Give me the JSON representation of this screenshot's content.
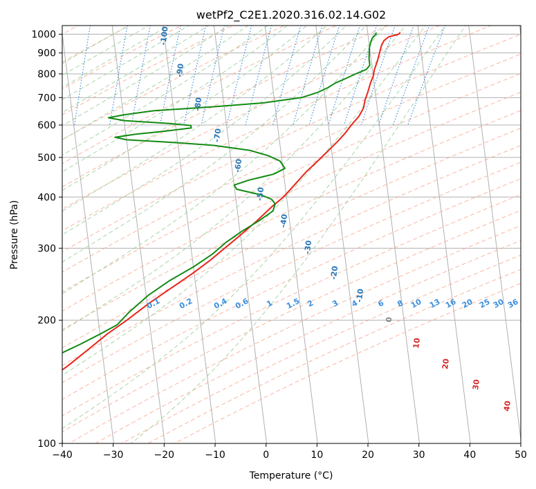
{
  "chart_data": {
    "type": "line",
    "subtype": "skew-t log-p diagram",
    "title": "wetPf2_C2E1.2020.316.02.14.G02",
    "xlabel": "Temperature (°C)",
    "ylabel": "Pressure (hPa)",
    "xlim": [
      -40,
      50
    ],
    "ylim": [
      1050,
      100
    ],
    "y_scale": "log (inverted)",
    "grid": true,
    "x_ticks": [
      "−40",
      "−30",
      "−20",
      "−10",
      "0",
      "10",
      "20",
      "30",
      "40",
      "50"
    ],
    "x_tick_values": [
      -40,
      -30,
      -20,
      -10,
      0,
      10,
      20,
      30,
      40,
      50
    ],
    "y_ticks": [
      "100",
      "200",
      "300",
      "400",
      "500",
      "600",
      "700",
      "800",
      "900",
      "1000"
    ],
    "y_tick_values": [
      100,
      200,
      300,
      400,
      500,
      600,
      700,
      800,
      900,
      1000
    ],
    "series": [
      {
        "color": "#e8231a",
        "role": "temperature",
        "points": [
          {
            "p": 1010,
            "t": 26.4
          },
          {
            "p": 1000,
            "t": 26.0
          },
          {
            "p": 985,
            "t": 24.0
          },
          {
            "p": 965,
            "t": 23.0
          },
          {
            "p": 940,
            "t": 22.4
          },
          {
            "p": 900,
            "t": 21.8
          },
          {
            "p": 860,
            "t": 21.2
          },
          {
            "p": 820,
            "t": 20.4
          },
          {
            "p": 790,
            "t": 20.0
          },
          {
            "p": 760,
            "t": 19.3
          },
          {
            "p": 720,
            "t": 18.5
          },
          {
            "p": 690,
            "t": 17.8
          },
          {
            "p": 660,
            "t": 17.3
          },
          {
            "p": 630,
            "t": 16.2
          },
          {
            "p": 600,
            "t": 14.5
          },
          {
            "p": 575,
            "t": 13.2
          },
          {
            "p": 550,
            "t": 11.6
          },
          {
            "p": 520,
            "t": 9.4
          },
          {
            "p": 490,
            "t": 7.0
          },
          {
            "p": 460,
            "t": 4.4
          },
          {
            "p": 430,
            "t": 2.0
          },
          {
            "p": 400,
            "t": -0.6
          },
          {
            "p": 380,
            "t": -3.0
          },
          {
            "p": 350,
            "t": -6.4
          },
          {
            "p": 320,
            "t": -10.4
          },
          {
            "p": 300,
            "t": -13.4
          },
          {
            "p": 280,
            "t": -16.6
          },
          {
            "p": 260,
            "t": -20.4
          },
          {
            "p": 240,
            "t": -24.8
          },
          {
            "p": 220,
            "t": -29.6
          },
          {
            "p": 200,
            "t": -34.4
          },
          {
            "p": 185,
            "t": -38.6
          },
          {
            "p": 170,
            "t": -42.6
          },
          {
            "p": 155,
            "t": -47.0
          },
          {
            "p": 140,
            "t": -52.4
          },
          {
            "p": 128,
            "t": -57.6
          },
          {
            "p": 118,
            "t": -62.6
          },
          {
            "p": 110,
            "t": -66.8
          },
          {
            "p": 105,
            "t": -69.6
          },
          {
            "p": 100,
            "t": -72.4
          }
        ]
      },
      {
        "color": "#118a11",
        "role": "dewpoint",
        "points": [
          {
            "p": 1010,
            "t": 21.6
          },
          {
            "p": 1000,
            "t": 21.6
          },
          {
            "p": 980,
            "t": 20.8
          },
          {
            "p": 960,
            "t": 20.4
          },
          {
            "p": 930,
            "t": 20.0
          },
          {
            "p": 900,
            "t": 19.8
          },
          {
            "p": 870,
            "t": 19.6
          },
          {
            "p": 840,
            "t": 19.6
          },
          {
            "p": 820,
            "t": 18.8
          },
          {
            "p": 800,
            "t": 16.6
          },
          {
            "p": 780,
            "t": 14.6
          },
          {
            "p": 760,
            "t": 12.4
          },
          {
            "p": 740,
            "t": 10.8
          },
          {
            "p": 720,
            "t": 8.6
          },
          {
            "p": 700,
            "t": 5.4
          },
          {
            "p": 680,
            "t": -2.0
          },
          {
            "p": 665,
            "t": -12.0
          },
          {
            "p": 650,
            "t": -24.0
          },
          {
            "p": 635,
            "t": -30.0
          },
          {
            "p": 625,
            "t": -33.0
          },
          {
            "p": 615,
            "t": -30.0
          },
          {
            "p": 605,
            "t": -21.0
          },
          {
            "p": 598,
            "t": -17.0
          },
          {
            "p": 590,
            "t": -17.0
          },
          {
            "p": 580,
            "t": -22.0
          },
          {
            "p": 570,
            "t": -28.0
          },
          {
            "p": 560,
            "t": -32.2
          },
          {
            "p": 552,
            "t": -30.0
          },
          {
            "p": 545,
            "t": -22.0
          },
          {
            "p": 535,
            "t": -13.0
          },
          {
            "p": 520,
            "t": -6.0
          },
          {
            "p": 505,
            "t": -2.6
          },
          {
            "p": 490,
            "t": -0.4
          },
          {
            "p": 470,
            "t": 0.4
          },
          {
            "p": 455,
            "t": -2.0
          },
          {
            "p": 440,
            "t": -7.0
          },
          {
            "p": 428,
            "t": -10.0
          },
          {
            "p": 418,
            "t": -9.6
          },
          {
            "p": 405,
            "t": -5.0
          },
          {
            "p": 395,
            "t": -3.0
          },
          {
            "p": 385,
            "t": -2.4
          },
          {
            "p": 370,
            "t": -3.0
          },
          {
            "p": 350,
            "t": -6.0
          },
          {
            "p": 330,
            "t": -9.6
          },
          {
            "p": 310,
            "t": -13.0
          },
          {
            "p": 290,
            "t": -16.0
          },
          {
            "p": 270,
            "t": -20.0
          },
          {
            "p": 250,
            "t": -25.0
          },
          {
            "p": 230,
            "t": -29.6
          },
          {
            "p": 210,
            "t": -33.6
          },
          {
            "p": 195,
            "t": -36.4
          },
          {
            "p": 185,
            "t": -40.0
          },
          {
            "p": 175,
            "t": -44.0
          },
          {
            "p": 160,
            "t": -51.0
          },
          {
            "p": 145,
            "t": -59.0
          },
          {
            "p": 132,
            "t": -65.0
          },
          {
            "p": 120,
            "t": -69.0
          },
          {
            "p": 112,
            "t": -71.0
          },
          {
            "p": 106,
            "t": -70.6
          },
          {
            "p": 102,
            "t": -68.6
          },
          {
            "p": 100,
            "t": -67.4
          }
        ]
      }
    ],
    "isotherm_labels": [
      "-100",
      "-90",
      "-80",
      "-70",
      "-60",
      "-50",
      "-40",
      "-30",
      "-20",
      "-10"
    ],
    "isotherm_label_values": [
      -100,
      -90,
      -80,
      -70,
      -60,
      -50,
      -40,
      -30,
      -20,
      -10
    ],
    "mixing_ratio_labels": [
      "0.1",
      "0.2",
      "0.4",
      "0.6",
      "1",
      "1.5",
      "2",
      "3",
      "4",
      "6",
      "8",
      "10",
      "13",
      "16",
      "20",
      "25",
      "30",
      "36"
    ],
    "mixing_ratio_values": [
      0.1,
      0.2,
      0.4,
      0.6,
      1,
      1.5,
      2,
      3,
      4,
      6,
      8,
      10,
      13,
      16,
      20,
      25,
      30,
      36
    ],
    "warm_isotherm_labels": [
      "0",
      "10",
      "20",
      "30",
      "40"
    ],
    "warm_isotherm_values": [
      0,
      10,
      20,
      30,
      40
    ],
    "colors": {
      "temperature": "#e8231a",
      "dewpoint": "#118a11",
      "isotherm": "#b0b0b0",
      "dry_adiabat": "#f7a28a",
      "moist_adiabat": "#9ccf9c",
      "mixing_ratio": "#3a8fe0",
      "cold_isotherm_label": "#2a78b8",
      "warm_isotherm_label": "#d62a2a",
      "zero_label": "#888888"
    }
  }
}
